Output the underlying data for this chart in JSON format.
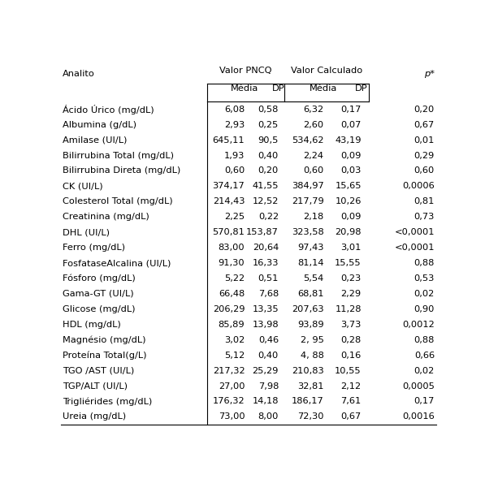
{
  "col_header_analito": "Analito",
  "col_group1": "Valor PNCQ",
  "col_group2": "Valor Calculado",
  "col_sub1": "Média",
  "col_sub2": "DP",
  "col_sub3": "Média",
  "col_sub4": "DP",
  "col_p": "p*",
  "rows": [
    [
      "Ácido Úrico (mg/dL)",
      "6,08",
      "0,58",
      "6,32",
      "0,17",
      "0,20"
    ],
    [
      "Albumina (g/dL)",
      "2,93",
      "0,25",
      "2,60",
      "0,07",
      "0,67"
    ],
    [
      "Amilase (UI/L)",
      "645,11",
      "90,5",
      "534,62",
      "43,19",
      "0,01"
    ],
    [
      "Bilirrubina Total (mg/dL)",
      "1,93",
      "0,40",
      "2,24",
      "0,09",
      "0,29"
    ],
    [
      "Bilirrubina Direta (mg/dL)",
      "0,60",
      "0,20",
      "0,60",
      "0,03",
      "0,60"
    ],
    [
      "CK (UI/L)",
      "374,17",
      "41,55",
      "384,97",
      "15,65",
      "0,0006"
    ],
    [
      "Colesterol Total (mg/dL)",
      "214,43",
      "12,52",
      "217,79",
      "10,26",
      "0,81"
    ],
    [
      "Creatinina (mg/dL)",
      "2,25",
      "0,22",
      "2,18",
      "0,09",
      "0,73"
    ],
    [
      "DHL (UI/L)",
      "570,81",
      "153,87",
      "323,58",
      "20,98",
      "<0,0001"
    ],
    [
      "Ferro (mg/dL)",
      "83,00",
      "20,64",
      "97,43",
      "3,01",
      "<0,0001"
    ],
    [
      "FosfataseAlcalina (UI/L)",
      "91,30",
      "16,33",
      "81,14",
      "15,55",
      "0,88"
    ],
    [
      "Fósforo (mg/dL)",
      "5,22",
      "0,51",
      "5,54",
      "0,23",
      "0,53"
    ],
    [
      "Gama-GT (UI/L)",
      "66,48",
      "7,68",
      "68,81",
      "2,29",
      "0,02"
    ],
    [
      "Glicose (mg/dL)",
      "206,29",
      "13,35",
      "207,63",
      "11,28",
      "0,90"
    ],
    [
      "HDL (mg/dL)",
      "85,89",
      "13,98",
      "93,89",
      "3,73",
      "0,0012"
    ],
    [
      "Magnésio (mg/dL)",
      "3,02",
      "0,46",
      "2, 95",
      "0,28",
      "0,88"
    ],
    [
      "Proteína Total(g/L)",
      "5,12",
      "0,40",
      "4, 88",
      "0,16",
      "0,66"
    ],
    [
      "TGO /AST (UI/L)",
      "217,32",
      "25,29",
      "210,83",
      "10,55",
      "0,02"
    ],
    [
      "TGP/ALT (UI/L)",
      "27,00",
      "7,98",
      "32,81",
      "2,12",
      "0,0005"
    ],
    [
      "Trigliérides (mg/dL)",
      "176,32",
      "14,18",
      "186,17",
      "7,61",
      "0,17"
    ],
    [
      "Ureia (mg/dL)",
      "73,00",
      "8,00",
      "72,30",
      "0,67",
      "0,0016"
    ]
  ],
  "bg_color": "#ffffff",
  "text_color": "#000000",
  "line_color": "#000000",
  "font_size": 8.2,
  "header_font_size": 8.2
}
